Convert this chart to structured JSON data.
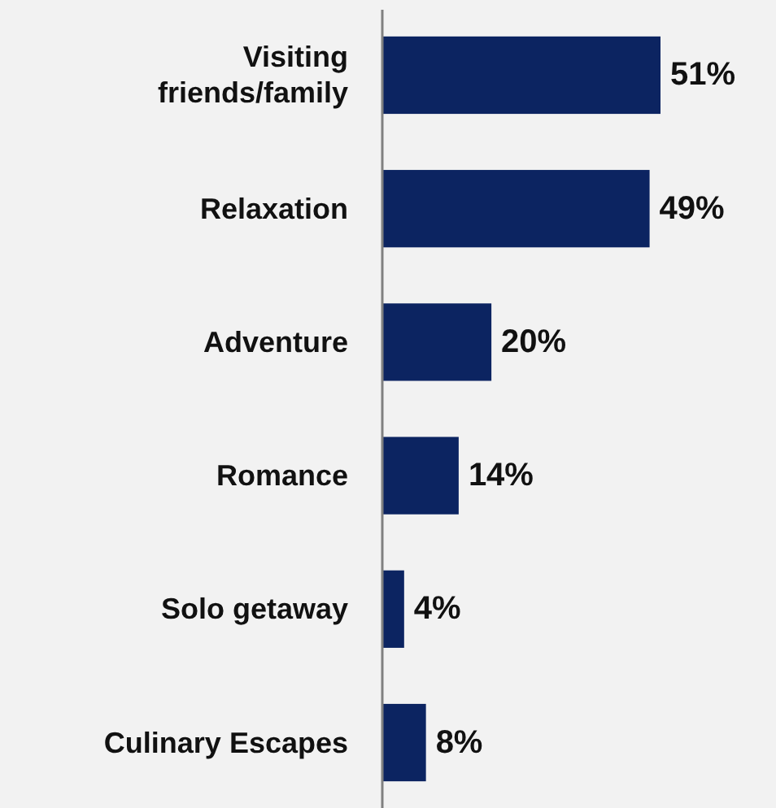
{
  "chart_data": {
    "type": "bar",
    "orientation": "horizontal",
    "categories": [
      "Visiting friends/family",
      "Relaxation",
      "Adventure",
      "Romance",
      "Solo getaway",
      "Culinary Escapes"
    ],
    "values": [
      51,
      49,
      20,
      14,
      4,
      8
    ],
    "value_labels": [
      "51%",
      "49%",
      "20%",
      "14%",
      "4%",
      "8%"
    ],
    "color": "#0c2461"
  }
}
